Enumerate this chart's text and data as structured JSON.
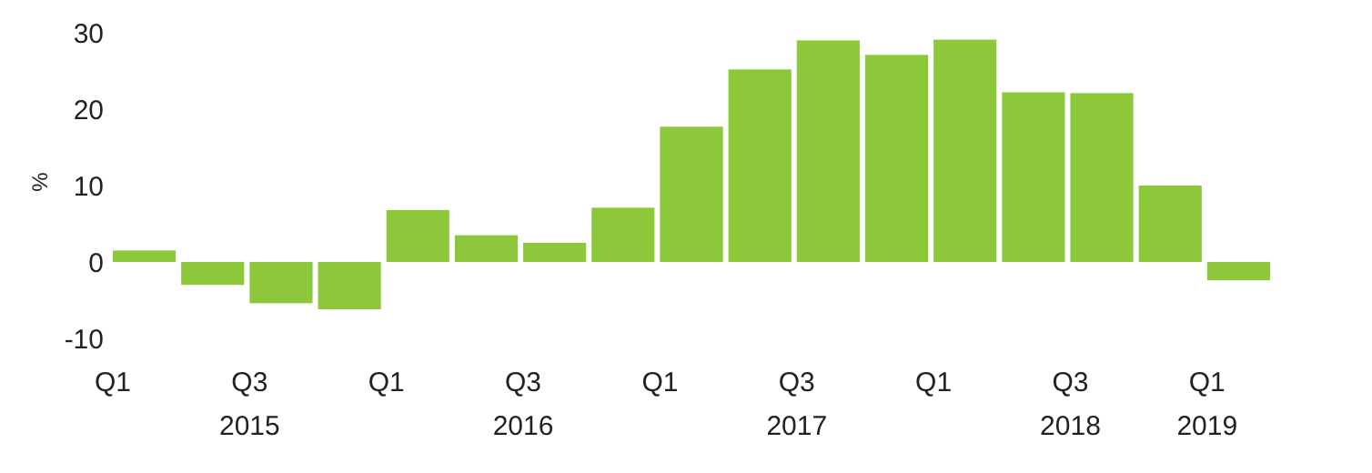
{
  "chart_data": {
    "type": "bar",
    "ylabel": "%",
    "categories": [
      "Q1",
      null,
      "Q3\n2015",
      null,
      "Q1",
      null,
      "Q3\n2016",
      null,
      "Q1",
      null,
      "Q3\n2017",
      null,
      "Q1",
      null,
      "Q3\n2018",
      null,
      "Q1\n2019"
    ],
    "values": [
      1.5,
      -3.0,
      -5.4,
      -6.2,
      6.8,
      3.5,
      2.5,
      7.1,
      17.7,
      25.2,
      29.0,
      27.1,
      29.1,
      22.2,
      22.1,
      10.0,
      -2.4
    ],
    "color": "#8cc83a",
    "ylim": [
      -10,
      30
    ],
    "yticks": [
      -10,
      0,
      10,
      20,
      30
    ],
    "grid": false
  }
}
